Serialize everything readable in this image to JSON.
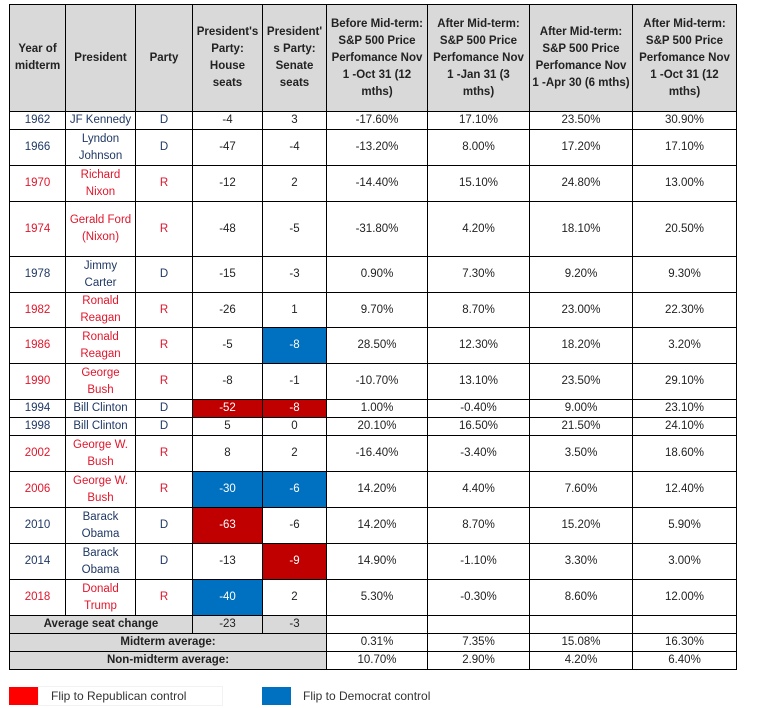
{
  "headers": {
    "year": "Year of midterm",
    "president": "President",
    "party": "Party",
    "house": "President's Party: House seats",
    "senate": "President' s Party: Senate seats",
    "before12": "Before Mid-term: S&P 500 Price Perfomance Nov 1 -Oct 31 (12 mths)",
    "after3": "After Mid-term: S&P 500 Price Perfomance Nov 1 -Jan 31 (3 mths)",
    "after6": "After Mid-term: S&P 500 Price Perfomance Nov 1 -Apr 30 (6 mths)",
    "after12": "After Mid-term: S&P 500 Price Perfomance Nov 1 -Oct 31 (12 mths)"
  },
  "rows": [
    {
      "year": "1962",
      "president": "JF Kennedy",
      "party": "D",
      "house": "-4",
      "senate": "3",
      "before12": "-17.60%",
      "after3": "17.10%",
      "after6": "23.50%",
      "after12": "30.90%",
      "house_flip": "",
      "senate_flip": ""
    },
    {
      "year": "1966",
      "president": "Lyndon Johnson",
      "party": "D",
      "house": "-47",
      "senate": "-4",
      "before12": "-13.20%",
      "after3": "8.00%",
      "after6": "17.20%",
      "after12": "17.10%",
      "house_flip": "",
      "senate_flip": ""
    },
    {
      "year": "1970",
      "president": "Richard Nixon",
      "party": "R",
      "house": "-12",
      "senate": "2",
      "before12": "-14.40%",
      "after3": "15.10%",
      "after6": "24.80%",
      "after12": "13.00%",
      "house_flip": "",
      "senate_flip": ""
    },
    {
      "year": "1974",
      "president": "Gerald Ford (Nixon)",
      "party": "R",
      "house": "-48",
      "senate": "-5",
      "before12": "-31.80%",
      "after3": "4.20%",
      "after6": "18.10%",
      "after12": "20.50%",
      "house_flip": "",
      "senate_flip": ""
    },
    {
      "year": "1978",
      "president": "Jimmy Carter",
      "party": "D",
      "house": "-15",
      "senate": "-3",
      "before12": "0.90%",
      "after3": "7.30%",
      "after6": "9.20%",
      "after12": "9.30%",
      "house_flip": "",
      "senate_flip": ""
    },
    {
      "year": "1982",
      "president": "Ronald Reagan",
      "party": "R",
      "house": "-26",
      "senate": "1",
      "before12": "9.70%",
      "after3": "8.70%",
      "after6": "23.00%",
      "after12": "22.30%",
      "house_flip": "",
      "senate_flip": ""
    },
    {
      "year": "1986",
      "president": "Ronald Reagan",
      "party": "R",
      "house": "-5",
      "senate": "-8",
      "before12": "28.50%",
      "after3": "12.30%",
      "after6": "18.20%",
      "after12": "3.20%",
      "house_flip": "",
      "senate_flip": "D"
    },
    {
      "year": "1990",
      "president": "George Bush",
      "party": "R",
      "house": "-8",
      "senate": "-1",
      "before12": "-10.70%",
      "after3": "13.10%",
      "after6": "23.50%",
      "after12": "29.10%",
      "house_flip": "",
      "senate_flip": ""
    },
    {
      "year": "1994",
      "president": "Bill Clinton",
      "party": "D",
      "house": "-52",
      "senate": "-8",
      "before12": "1.00%",
      "after3": "-0.40%",
      "after6": "9.00%",
      "after12": "23.10%",
      "house_flip": "R",
      "senate_flip": "R"
    },
    {
      "year": "1998",
      "president": "Bill Clinton",
      "party": "D",
      "house": "5",
      "senate": "0",
      "before12": "20.10%",
      "after3": "16.50%",
      "after6": "21.50%",
      "after12": "24.10%",
      "house_flip": "",
      "senate_flip": ""
    },
    {
      "year": "2002",
      "president": "George W. Bush",
      "party": "R",
      "house": "8",
      "senate": "2",
      "before12": "-16.40%",
      "after3": "-3.40%",
      "after6": "3.50%",
      "after12": "18.60%",
      "house_flip": "",
      "senate_flip": ""
    },
    {
      "year": "2006",
      "president": "George W. Bush",
      "party": "R",
      "house": "-30",
      "senate": "-6",
      "before12": "14.20%",
      "after3": "4.40%",
      "after6": "7.60%",
      "after12": "12.40%",
      "house_flip": "D",
      "senate_flip": "D"
    },
    {
      "year": "2010",
      "president": "Barack Obama",
      "party": "D",
      "house": "-63",
      "senate": "-6",
      "before12": "14.20%",
      "after3": "8.70%",
      "after6": "15.20%",
      "after12": "5.90%",
      "house_flip": "R",
      "senate_flip": ""
    },
    {
      "year": "2014",
      "president": "Barack Obama",
      "party": "D",
      "house": "-13",
      "senate": "-9",
      "before12": "14.90%",
      "after3": "-1.10%",
      "after6": "3.30%",
      "after12": "3.00%",
      "house_flip": "",
      "senate_flip": "R"
    },
    {
      "year": "2018",
      "president": "Donald Trump",
      "party": "R",
      "house": "-40",
      "senate": "2",
      "before12": "5.30%",
      "after3": "-0.30%",
      "after6": "8.60%",
      "after12": "12.00%",
      "house_flip": "D",
      "senate_flip": ""
    }
  ],
  "average_seat_change": {
    "label": "Average seat change",
    "house": "-23",
    "senate": "-3"
  },
  "midterm_average": {
    "label": "Midterm average:",
    "before12": "0.31%",
    "after3": "7.35%",
    "after6": "15.08%",
    "after12": "16.30%"
  },
  "non_midterm_average": {
    "label": "Non-midterm average:",
    "before12": "10.70%",
    "after3": "2.90%",
    "after6": "4.20%",
    "after12": "6.40%"
  },
  "legend": {
    "republican": {
      "label": "Flip to Republican control",
      "color": "#ff0000"
    },
    "democrat": {
      "label": "Flip to Democrat control",
      "color": "#0070c0"
    }
  },
  "colors": {
    "flip_republican_cell": "#c00000",
    "flip_democrat_cell": "#0070c0",
    "democrat_text": "#1f3864",
    "republican_text": "#e0162b",
    "header_bg": "#d9d9d9"
  }
}
